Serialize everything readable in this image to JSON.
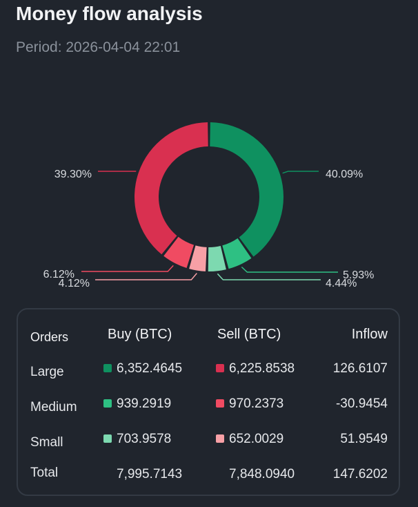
{
  "title": "Money flow analysis",
  "period": "Period: 2026-04-04 22:01",
  "colors": {
    "large_buy": "#0f9160",
    "medium_buy": "#2ec083",
    "small_buy": "#7dd9b0",
    "large_sell": "#d93050",
    "medium_sell": "#f04b62",
    "small_sell": "#f7a0a6",
    "background": "#20252d"
  },
  "chart_data": {
    "type": "pie",
    "title": "",
    "slices": [
      {
        "name": "Large Buy",
        "value": 40.09,
        "label": "40.09%",
        "color": "#0f9160"
      },
      {
        "name": "Medium Buy",
        "value": 5.93,
        "label": "5.93%",
        "color": "#2ec083"
      },
      {
        "name": "Small Buy",
        "value": 4.44,
        "label": "4.44%",
        "color": "#7dd9b0"
      },
      {
        "name": "Small Sell",
        "value": 4.12,
        "label": "4.12%",
        "color": "#f7a0a6"
      },
      {
        "name": "Medium Sell",
        "value": 6.12,
        "label": "6.12%",
        "color": "#f04b62"
      },
      {
        "name": "Large Sell",
        "value": 39.3,
        "label": "39.30%",
        "color": "#d93050"
      }
    ]
  },
  "table": {
    "headers": {
      "orders": "Orders",
      "buy": "Buy (BTC)",
      "sell": "Sell (BTC)",
      "inflow": "Inflow"
    },
    "rows": [
      {
        "name": "Large",
        "buy": "6,352.4645",
        "sell": "6,225.8538",
        "inflow": "126.6107"
      },
      {
        "name": "Medium",
        "buy": "939.2919",
        "sell": "970.2373",
        "inflow": "-30.9454"
      },
      {
        "name": "Small",
        "buy": "703.9578",
        "sell": "652.0029",
        "inflow": "51.9549"
      }
    ],
    "total": {
      "name": "Total",
      "buy": "7,995.7143",
      "sell": "7,848.0940",
      "inflow": "147.6202"
    }
  }
}
